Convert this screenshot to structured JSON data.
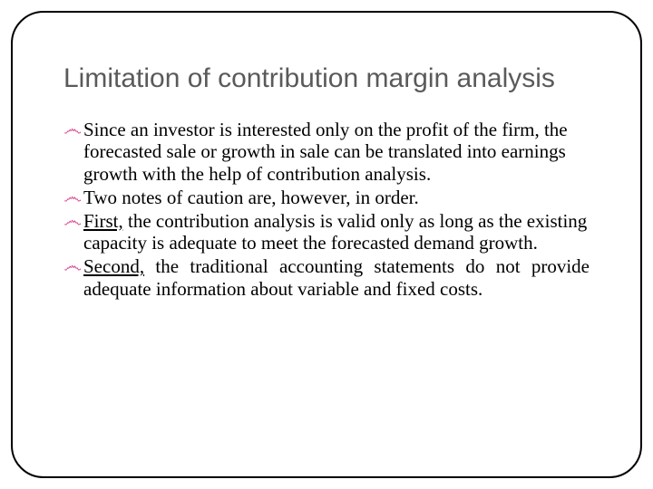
{
  "slide": {
    "title": "Limitation of contribution margin analysis",
    "bullet_glyph": "෴",
    "bullets": [
      {
        "text": "Since an investor is interested only on the profit of the firm, the forecasted sale or growth in sale can be translated into earnings growth with the help of contribution analysis.",
        "justify": false
      },
      {
        "text": "Two notes of caution are, however, in order.",
        "justify": false
      },
      {
        "lead": "First,",
        "rest": " the contribution analysis is valid only as long as the existing capacity is adequate to meet the forecasted demand growth.",
        "justify": false
      },
      {
        "lead": "Second,",
        "rest": " the traditional accounting statements do not provide adequate information about variable  and fixed costs.",
        "justify": true
      }
    ],
    "colors": {
      "title": "#5a5a5a",
      "bullet": "#d63384",
      "text": "#000000",
      "frame": "#000000",
      "background": "#ffffff"
    },
    "typography": {
      "title_family": "Arial",
      "title_size_pt": 22,
      "body_family": "Times New Roman",
      "body_size_pt": 16
    }
  }
}
